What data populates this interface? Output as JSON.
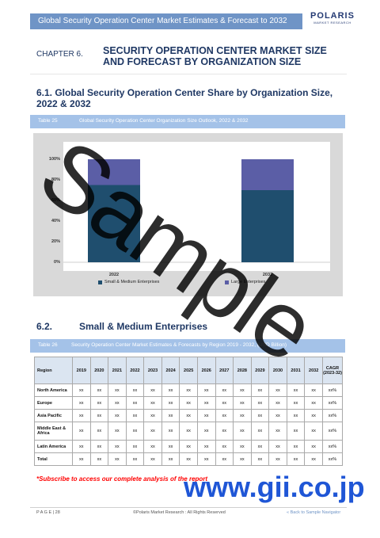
{
  "header": {
    "title": "Global Security Operation Center Market Estimates & Forecast to 2032"
  },
  "logo": {
    "brand": "POLARIS",
    "sub": "MARKET RESEARCH"
  },
  "chapter": {
    "label": "CHAPTER 6.",
    "title": "SECURITY OPERATION CENTER MARKET SIZE AND FORECAST BY ORGANIZATION SIZE"
  },
  "section1": {
    "title": "6.1.  Global Security Operation Center Share by Organization Size, 2022 & 2032"
  },
  "table25": {
    "number": "Table 25",
    "caption": "Global Security Operation Center Organization Size Outlook, 2022 & 2032"
  },
  "chart_data": {
    "type": "bar",
    "stacked": true,
    "categories": [
      "2022",
      "2032"
    ],
    "series": [
      {
        "name": "Small & Medium Enterprises",
        "values": [
          75,
          70
        ],
        "color": "#1f4e6e"
      },
      {
        "name": "Large Enterprises",
        "values": [
          25,
          30
        ],
        "color": "#5b5ea6"
      }
    ],
    "yticks": [
      "100%",
      "80%",
      "60%",
      "40%",
      "20%",
      "0%"
    ],
    "ylim": [
      0,
      100
    ],
    "legend": [
      "Small & Medium Enterprises",
      "Large Enterprises"
    ],
    "legend_position": "bottom"
  },
  "section2": {
    "number": "6.2.",
    "title": "Small & Medium Enterprises"
  },
  "table26": {
    "number": "Table 26",
    "caption": "Security Operation Center Market Estimates & Forecasts by Region 2019 - 2032, (USD Billion)"
  },
  "table": {
    "headers": [
      "Region",
      "2019",
      "2020",
      "2021",
      "2022",
      "2023",
      "2024",
      "2025",
      "2026",
      "2027",
      "2028",
      "2029",
      "2030",
      "2031",
      "2032",
      "CAGR (2023-32)"
    ],
    "rows": [
      {
        "region": "North America",
        "values": [
          "xx",
          "xx",
          "xx",
          "xx",
          "xx",
          "xx",
          "xx",
          "xx",
          "xx",
          "xx",
          "xx",
          "xx",
          "xx",
          "xx",
          "xx%"
        ]
      },
      {
        "region": "Europe",
        "values": [
          "xx",
          "xx",
          "xx",
          "xx",
          "xx",
          "xx",
          "xx",
          "xx",
          "xx",
          "xx",
          "xx",
          "xx",
          "xx",
          "xx",
          "xx%"
        ]
      },
      {
        "region": "Asia Pacific",
        "values": [
          "xx",
          "xx",
          "xx",
          "xx",
          "xx",
          "xx",
          "xx",
          "xx",
          "xx",
          "xx",
          "xx",
          "xx",
          "xx",
          "xx",
          "xx%"
        ]
      },
      {
        "region": "Middle East & Africa",
        "values": [
          "xx",
          "xx",
          "xx",
          "xx",
          "xx",
          "xx",
          "xx",
          "xx",
          "xx",
          "xx",
          "xx",
          "xx",
          "xx",
          "xx",
          "xx%"
        ]
      },
      {
        "region": "Latin America",
        "values": [
          "xx",
          "xx",
          "xx",
          "xx",
          "xx",
          "xx",
          "xx",
          "xx",
          "xx",
          "xx",
          "xx",
          "xx",
          "xx",
          "xx",
          "xx%"
        ]
      },
      {
        "region": "Total",
        "values": [
          "xx",
          "xx",
          "xx",
          "xx",
          "xx",
          "xx",
          "xx",
          "xx",
          "xx",
          "xx",
          "xx",
          "xx",
          "xx",
          "xx",
          "xx%"
        ]
      }
    ]
  },
  "subscribe": "*Subscribe to access our complete analysis of the report",
  "footer": {
    "page": "P A G E  | 28",
    "copyright": "©Polaris Market Research : All Rights Reserved",
    "nav": "« Back to Sample Navigator"
  },
  "watermark": "Sample",
  "gii": "www.gii.co.jp"
}
